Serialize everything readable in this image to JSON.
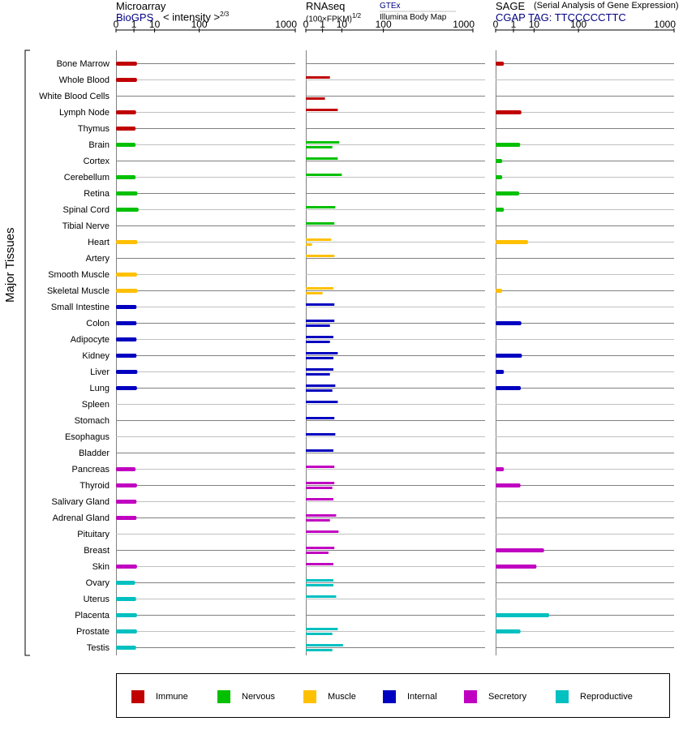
{
  "panels": {
    "microarray": {
      "title": "Microarray",
      "source": "BioGPS",
      "scale_label": "< intensity >",
      "scale_exp": "2/3"
    },
    "rnaseq": {
      "title": "RNAseq",
      "source": "GTEx",
      "subtitle": "(100×FPKM)",
      "scale_exp": "1/2",
      "source_detail": "Illumina Body Map"
    },
    "sage": {
      "title": "SAGE",
      "subtitle": "(Serial Analysis of Gene Expression)",
      "tag": "CGAP TAG: TTCCCCCTTC"
    }
  },
  "y_axis_label": "Major Tissues",
  "legend": [
    {
      "label": "Immune",
      "color": "#c00000"
    },
    {
      "label": "Nervous",
      "color": "#00c000"
    },
    {
      "label": "Muscle",
      "color": "#ffc000"
    },
    {
      "label": "Internal",
      "color": "#0000c0"
    },
    {
      "label": "Secretory",
      "color": "#c000c0"
    },
    {
      "label": "Reproductive",
      "color": "#00c0c0"
    }
  ],
  "chart_data": {
    "type": "bar",
    "orientation": "horizontal",
    "x_ticks": [
      "0",
      "1",
      "10",
      "100",
      "1000"
    ],
    "x_scale": "power",
    "xlim": [
      0,
      1000
    ],
    "categories": [
      "Bone Marrow",
      "Whole Blood",
      "White Blood Cells",
      "Lymph Node",
      "Thymus",
      "Brain",
      "Cortex",
      "Cerebellum",
      "Retina",
      "Spinal Cord",
      "Tibial Nerve",
      "Heart",
      "Artery",
      "Smooth Muscle",
      "Skeletal Muscle",
      "Small Intestine",
      "Colon",
      "Adipocyte",
      "Kidney",
      "Liver",
      "Lung",
      "Spleen",
      "Stomach",
      "Esophagus",
      "Bladder",
      "Pancreas",
      "Thyroid",
      "Salivary Gland",
      "Adrenal Gland",
      "Pituitary",
      "Breast",
      "Skin",
      "Ovary",
      "Uterus",
      "Placenta",
      "Prostate",
      "Testis"
    ],
    "groups": [
      "Immune",
      "Immune",
      "Immune",
      "Immune",
      "Immune",
      "Nervous",
      "Nervous",
      "Nervous",
      "Nervous",
      "Nervous",
      "Nervous",
      "Muscle",
      "Muscle",
      "Muscle",
      "Muscle",
      "Internal",
      "Internal",
      "Internal",
      "Internal",
      "Internal",
      "Internal",
      "Internal",
      "Internal",
      "Internal",
      "Internal",
      "Secretory",
      "Secretory",
      "Secretory",
      "Secretory",
      "Secretory",
      "Secretory",
      "Secretory",
      "Reproductive",
      "Reproductive",
      "Reproductive",
      "Reproductive",
      "Reproductive"
    ],
    "series": [
      {
        "name": "Microarray",
        "values": [
          1.6,
          1.6,
          null,
          1.4,
          1.3,
          1.3,
          null,
          1.3,
          1.7,
          2.0,
          null,
          1.7,
          null,
          1.6,
          1.7,
          1.5,
          1.5,
          1.5,
          1.5,
          1.7,
          1.6,
          null,
          null,
          null,
          null,
          1.3,
          1.6,
          1.5,
          1.5,
          null,
          null,
          1.6,
          1.2,
          1.4,
          1.6,
          1.6,
          1.4
        ]
      },
      {
        "name": "RNAseq GTEx",
        "values": [
          null,
          3.0,
          null,
          7.0,
          null,
          8.0,
          7.0,
          10.0,
          null,
          5.5,
          5.0,
          3.5,
          5.0,
          null,
          4.5,
          5.0,
          5.0,
          4.5,
          7.0,
          4.5,
          5.5,
          7.0,
          5.0,
          5.5,
          4.5,
          5.0,
          5.0,
          4.5,
          6.0,
          7.5,
          5.0,
          4.5,
          4.5,
          6.0,
          null,
          7.0,
          11.0
        ]
      },
      {
        "name": "RNAseq Illumina Body Map",
        "values": [
          null,
          null,
          1.5,
          null,
          null,
          4.0,
          null,
          null,
          null,
          null,
          null,
          0.05,
          null,
          null,
          1.0,
          null,
          3.0,
          3.0,
          4.5,
          3.0,
          4.0,
          null,
          null,
          null,
          null,
          null,
          4.0,
          null,
          3.0,
          null,
          2.5,
          null,
          4.5,
          null,
          null,
          4.0,
          4.0
        ]
      },
      {
        "name": "SAGE",
        "values": [
          0.1,
          null,
          null,
          3.0,
          null,
          2.6,
          0.05,
          0.05,
          2.3,
          0.1,
          null,
          6.0,
          null,
          null,
          0.05,
          null,
          3.0,
          null,
          3.2,
          0.1,
          2.8,
          null,
          null,
          null,
          null,
          0.1,
          2.7,
          null,
          null,
          null,
          20,
          12,
          null,
          null,
          27,
          2.7,
          null
        ]
      }
    ]
  }
}
